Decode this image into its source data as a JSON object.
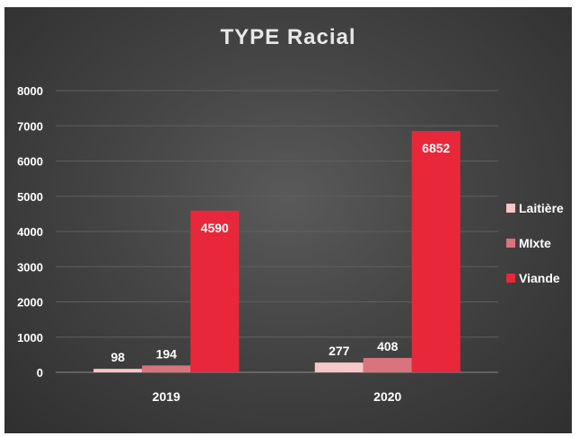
{
  "chart_data": {
    "type": "bar",
    "title": "TYPE Racial",
    "categories": [
      "2019",
      "2020"
    ],
    "series": [
      {
        "name": "Laitière",
        "values": [
          98,
          277
        ],
        "color": "#f7c6c9"
      },
      {
        "name": "MIxte",
        "values": [
          194,
          408
        ],
        "color": "#d9737e"
      },
      {
        "name": "Viande",
        "values": [
          4590,
          6852
        ],
        "color": "#e8283a"
      }
    ],
    "yticks": [
      0,
      1000,
      2000,
      3000,
      4000,
      5000,
      6000,
      7000,
      8000
    ],
    "ylim": [
      0,
      8000
    ],
    "grid": true,
    "legend": "right",
    "data_label_colors": [
      "#ffffff",
      "#ffffff",
      "#ffffff"
    ]
  }
}
